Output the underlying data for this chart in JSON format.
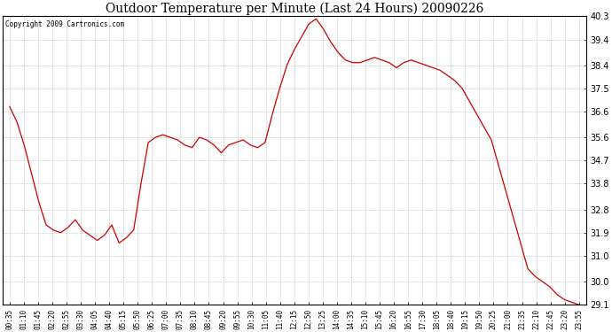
{
  "title": "Outdoor Temperature per Minute (Last 24 Hours) 20090226",
  "copyright_text": "Copyright 2009 Cartronics.com",
  "line_color": "#cc0000",
  "background_color": "#ffffff",
  "grid_color": "#bbbbbb",
  "y_min": 29.1,
  "y_max": 40.3,
  "y_ticks": [
    29.1,
    30.0,
    31.0,
    31.9,
    32.8,
    33.8,
    34.7,
    35.6,
    36.6,
    37.5,
    38.4,
    39.4,
    40.3
  ],
  "x_tick_labels": [
    "00:35",
    "01:10",
    "01:45",
    "02:20",
    "02:55",
    "03:30",
    "04:05",
    "04:40",
    "05:15",
    "05:50",
    "06:25",
    "07:00",
    "07:35",
    "08:10",
    "08:45",
    "09:20",
    "09:55",
    "10:30",
    "11:05",
    "11:40",
    "12:15",
    "12:50",
    "13:25",
    "14:00",
    "14:35",
    "15:10",
    "15:45",
    "16:20",
    "16:55",
    "17:30",
    "18:05",
    "18:40",
    "19:15",
    "19:50",
    "20:25",
    "21:00",
    "21:35",
    "22:10",
    "22:45",
    "23:20",
    "23:55"
  ],
  "temperature_profile": [
    36.8,
    36.2,
    35.3,
    34.2,
    33.1,
    32.2,
    32.0,
    31.9,
    32.1,
    32.4,
    32.0,
    31.8,
    31.6,
    31.8,
    32.2,
    31.5,
    31.7,
    32.0,
    33.8,
    35.4,
    35.6,
    35.7,
    35.6,
    35.5,
    35.3,
    35.2,
    35.6,
    35.5,
    35.3,
    35.0,
    35.3,
    35.4,
    35.5,
    35.3,
    35.2,
    35.4,
    36.5,
    37.5,
    38.4,
    39.0,
    39.5,
    40.0,
    40.2,
    39.8,
    39.3,
    38.9,
    38.6,
    38.5,
    38.5,
    38.6,
    38.7,
    38.6,
    38.5,
    38.3,
    38.5,
    38.6,
    38.5,
    38.4,
    38.3,
    38.2,
    38.0,
    37.8,
    37.5,
    37.0,
    36.5,
    36.0,
    35.5,
    34.5,
    33.5,
    32.5,
    31.5,
    30.5,
    30.2,
    30.0,
    29.8,
    29.5,
    29.3,
    29.2,
    29.1
  ],
  "figsize": [
    6.9,
    3.75
  ],
  "dpi": 100,
  "title_fontsize": 10,
  "copyright_fontsize": 5.5,
  "xtick_fontsize": 5.5,
  "ytick_fontsize": 7
}
